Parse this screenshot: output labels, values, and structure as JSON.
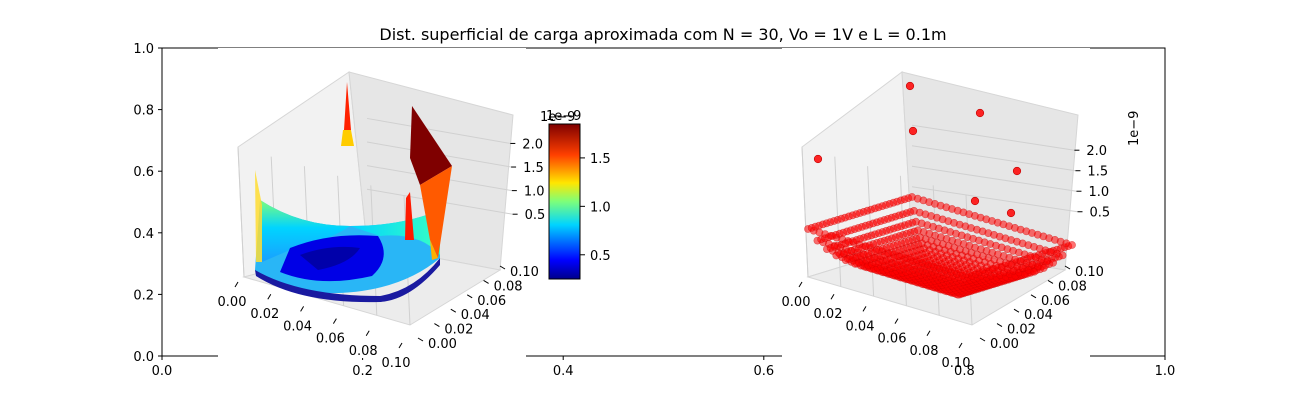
{
  "chart_data": [
    {
      "type": "axes",
      "title": "Dist. superficial de carga aproximada com N = 30, Vo = 1V e L = 0.1m",
      "xlim": [
        0.0,
        1.0
      ],
      "ylim": [
        0.0,
        1.0
      ],
      "xticks": [
        "0.0",
        "0.2",
        "0.4",
        "0.6",
        "0.8",
        "1.0"
      ],
      "yticks": [
        "0.0",
        "0.2",
        "0.4",
        "0.6",
        "0.8",
        "1.0"
      ]
    },
    {
      "type": "surface3d",
      "colormap": "jet",
      "x_ticks": [
        "0.00",
        "0.02",
        "0.04",
        "0.06",
        "0.08",
        "0.10"
      ],
      "y_ticks": [
        "0.00",
        "0.02",
        "0.04",
        "0.06",
        "0.08",
        "0.10"
      ],
      "z_ticks": [
        "0.5",
        "1.0",
        "1.5",
        "2.0"
      ],
      "z_offset_label": "1e−9",
      "z_range": [
        0.25,
        2.2
      ],
      "colorbar": {
        "ticks": [
          "0.5",
          "1.0",
          "1.5"
        ],
        "offset_label": "1e−9",
        "range": [
          0.25,
          1.85
        ]
      }
    },
    {
      "type": "scatter3d",
      "color": "#ff0000",
      "x_ticks": [
        "0.00",
        "0.02",
        "0.04",
        "0.06",
        "0.08",
        "0.10"
      ],
      "y_ticks": [
        "0.00",
        "0.02",
        "0.04",
        "0.06",
        "0.08",
        "0.10"
      ],
      "z_ticks": [
        "0.5",
        "1.0",
        "1.5",
        "2.0"
      ],
      "z_offset_label": "1e−9",
      "z_range": [
        0.25,
        2.2
      ]
    }
  ]
}
